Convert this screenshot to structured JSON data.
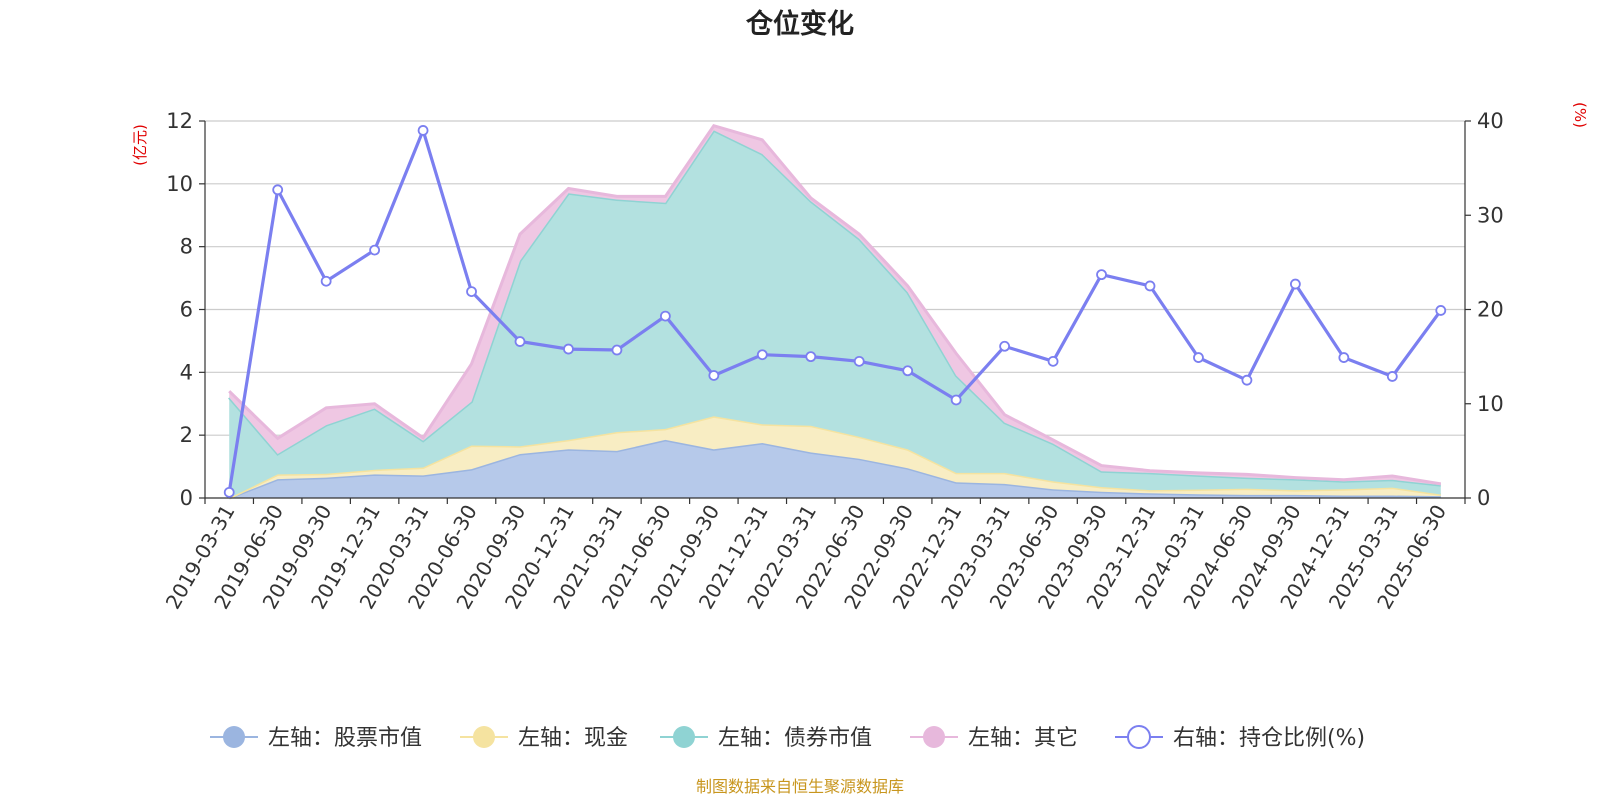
{
  "chart_data": {
    "type": "area",
    "title": "仓位变化",
    "left_unit": "(亿元)",
    "right_unit": "(%)",
    "left_ylim": [
      0,
      12
    ],
    "left_ticks": [
      "0",
      "2",
      "4",
      "6",
      "8",
      "10",
      "12"
    ],
    "right_ylim": [
      0,
      40
    ],
    "right_ticks": [
      "0",
      "10",
      "20",
      "30",
      "40"
    ],
    "grid": true,
    "legend_position": "bottom",
    "categories": [
      "2019-03-31",
      "2019-06-30",
      "2019-09-30",
      "2019-12-31",
      "2020-03-31",
      "2020-06-30",
      "2020-09-30",
      "2020-12-31",
      "2021-03-31",
      "2021-06-30",
      "2021-09-30",
      "2021-12-31",
      "2022-03-31",
      "2022-06-30",
      "2022-09-30",
      "2022-12-31",
      "2023-03-31",
      "2023-06-30",
      "2023-09-30",
      "2023-12-31",
      "2024-03-31",
      "2024-06-30",
      "2024-09-30",
      "2024-12-31",
      "2025-03-31",
      "2025-06-30"
    ],
    "series": [
      {
        "name": "左轴：股票市值",
        "axis": "left",
        "kind": "area",
        "color": "#9bb5e0",
        "fill": "#b6c9ea",
        "values": [
          0.0,
          0.6,
          0.65,
          0.75,
          0.72,
          0.92,
          1.4,
          1.55,
          1.5,
          1.85,
          1.55,
          1.75,
          1.45,
          1.25,
          0.95,
          0.5,
          0.45,
          0.28,
          0.2,
          0.15,
          0.12,
          0.1,
          0.1,
          0.08,
          0.08,
          0.06
        ]
      },
      {
        "name": "左轴：现金",
        "axis": "left",
        "kind": "area",
        "color": "#f5e3a0",
        "fill": "#f8edc3",
        "values": [
          0.0,
          0.15,
          0.12,
          0.15,
          0.25,
          0.75,
          0.25,
          0.3,
          0.6,
          0.35,
          1.05,
          0.6,
          0.85,
          0.7,
          0.6,
          0.3,
          0.35,
          0.25,
          0.15,
          0.1,
          0.15,
          0.2,
          0.15,
          0.2,
          0.25,
          0.05
        ]
      },
      {
        "name": "左轴：债券市值",
        "axis": "left",
        "kind": "area",
        "color": "#8fd3d3",
        "fill": "#b3e1e0",
        "values": [
          3.2,
          0.65,
          1.55,
          1.95,
          0.85,
          1.4,
          5.9,
          7.85,
          7.4,
          7.2,
          9.1,
          8.6,
          7.15,
          6.3,
          5.0,
          3.1,
          1.6,
          1.2,
          0.5,
          0.55,
          0.45,
          0.35,
          0.35,
          0.25,
          0.25,
          0.3
        ]
      },
      {
        "name": "左轴：其它",
        "axis": "left",
        "kind": "area",
        "color": "#e7b8dc",
        "fill": "#efc7e3",
        "values": [
          0.2,
          0.5,
          0.55,
          0.15,
          0.1,
          1.2,
          0.85,
          0.15,
          0.1,
          0.2,
          0.15,
          0.45,
          0.1,
          0.15,
          0.2,
          0.7,
          0.25,
          0.12,
          0.18,
          0.07,
          0.08,
          0.1,
          0.05,
          0.05,
          0.12,
          0.04
        ]
      },
      {
        "name": "右轴：持仓比例(%)",
        "axis": "right",
        "kind": "line",
        "color": "#7b7ff0",
        "values": [
          0.6,
          32.7,
          23.0,
          26.3,
          39.0,
          21.9,
          16.6,
          15.8,
          15.7,
          19.3,
          13.0,
          15.2,
          15.0,
          14.5,
          13.5,
          10.4,
          16.1,
          14.5,
          23.7,
          22.5,
          14.9,
          12.5,
          22.7,
          14.9,
          12.9,
          19.9
        ]
      }
    ]
  },
  "footer": {
    "source": "制图数据来自恒生聚源数据库"
  }
}
